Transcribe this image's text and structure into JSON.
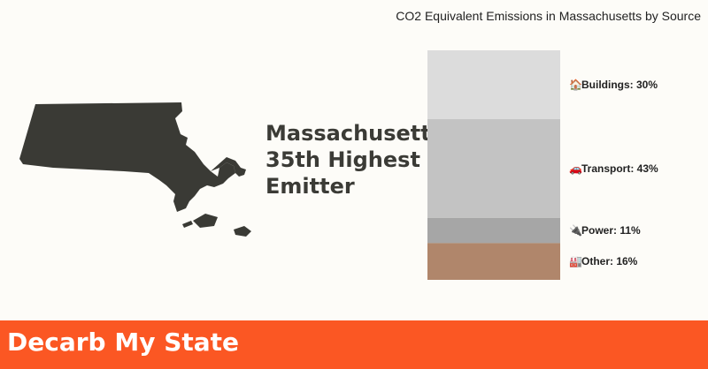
{
  "state": {
    "name": "Massachusetts",
    "rank_text": "35th Highest",
    "category_text": "Emitter",
    "map_color": "#3a3a35"
  },
  "chart_data": {
    "type": "bar",
    "stacked": true,
    "orientation": "vertical",
    "title": "CO2 Equivalent Emissions in Massachusetts by Source",
    "categories": [
      "Buildings",
      "Transport",
      "Power",
      "Other"
    ],
    "values": [
      30,
      43,
      11,
      16
    ],
    "unit": "%",
    "labels": [
      "Buildings: 30%",
      "Transport: 43%",
      "Power: 11%",
      "Other: 16%"
    ],
    "icons": [
      "house-icon",
      "car-icon",
      "plug-icon",
      "factory-icon"
    ],
    "colors": [
      "#dcdcdc",
      "#c3c3c3",
      "#a6a6a6",
      "#b0866b"
    ],
    "grid": false,
    "legend": "none"
  },
  "footer": {
    "brand": "Decarb My State",
    "background": "#fb5723"
  }
}
